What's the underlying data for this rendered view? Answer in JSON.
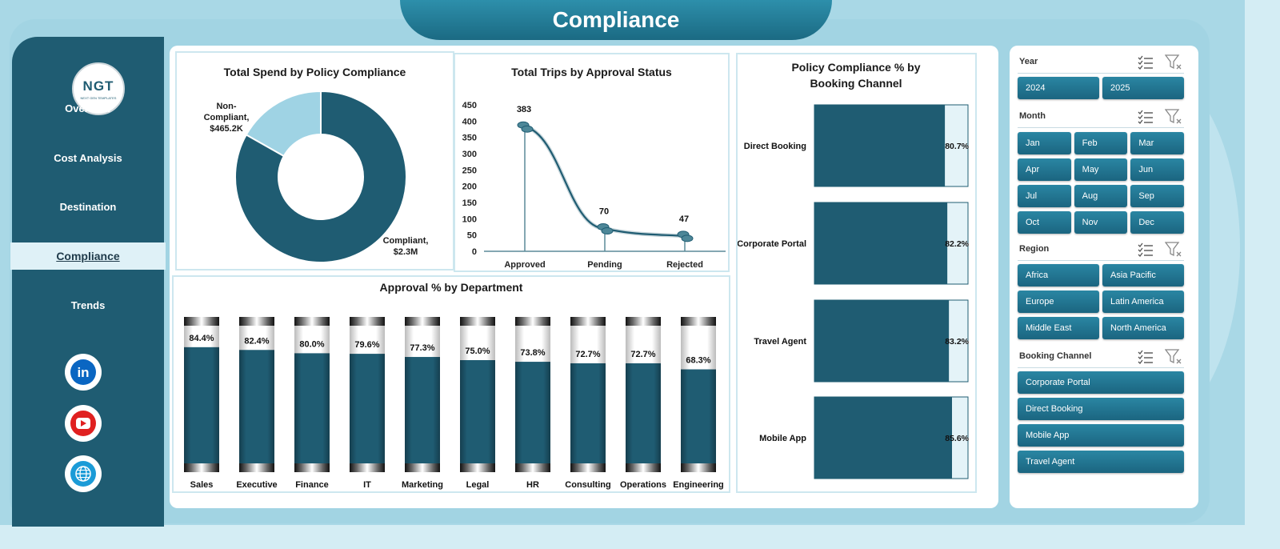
{
  "header": {
    "title": "Compliance"
  },
  "logo": {
    "mark": "NGT",
    "tagline": "NEXT GEN TEMPLATES"
  },
  "sidebar": {
    "items": [
      {
        "label": "Overview"
      },
      {
        "label": "Cost Analysis"
      },
      {
        "label": "Destination"
      },
      {
        "label": "Compliance",
        "active": true
      },
      {
        "label": "Trends"
      }
    ],
    "social": [
      {
        "icon": "linkedin-icon",
        "label": "in"
      },
      {
        "icon": "youtube-icon",
        "label": "▶"
      },
      {
        "icon": "globe-icon",
        "label": "🌐"
      }
    ]
  },
  "colors": {
    "primary": "#1f5c72",
    "light": "#a9d8e6",
    "donut_light": "#9fd3e4",
    "bar_bg": "#e4f3f8"
  },
  "chart_data": [
    {
      "type": "pie",
      "title": "Total Spend by Policy Compliance",
      "slices": [
        {
          "label": "Compliant",
          "display": "$2.3M",
          "value": 2300
        },
        {
          "label": "Non-Compliant",
          "display": "$465.2K",
          "value": 465.2
        }
      ]
    },
    {
      "type": "line",
      "title": "Total Trips by Approval Status",
      "categories": [
        "Approved",
        "Pending",
        "Rejected"
      ],
      "values": [
        383,
        70,
        47
      ],
      "ylim": [
        0,
        450
      ],
      "yticks": [
        0,
        50,
        100,
        150,
        200,
        250,
        300,
        350,
        400,
        450
      ]
    },
    {
      "type": "bar",
      "title": "Policy Compliance % by Booking Channel",
      "categories": [
        "Direct Booking",
        "Corporate Portal",
        "Travel Agent",
        "Mobile App"
      ],
      "values": [
        80.7,
        82.2,
        83.2,
        85.6
      ],
      "labels": [
        "80.7%",
        "82.2%",
        "83.2%",
        "85.6%"
      ],
      "xlim": [
        0,
        100
      ]
    },
    {
      "type": "bar",
      "title": "Approval % by Department",
      "categories": [
        "Sales",
        "Executive",
        "Finance",
        "IT",
        "Marketing",
        "Legal",
        "HR",
        "Consulting",
        "Operations",
        "Engineering"
      ],
      "values": [
        84.4,
        82.4,
        80.0,
        79.6,
        77.3,
        75.0,
        73.8,
        72.7,
        72.7,
        68.3
      ],
      "labels": [
        "84.4%",
        "82.4%",
        "80.0%",
        "79.6%",
        "77.3%",
        "75.0%",
        "73.8%",
        "72.7%",
        "72.7%",
        "68.3%"
      ],
      "ylim": [
        0,
        100
      ]
    }
  ],
  "filters": [
    {
      "title": "Year",
      "options": [
        "2024",
        "2025"
      ]
    },
    {
      "title": "Month",
      "options": [
        "Jan",
        "Feb",
        "Mar",
        "Apr",
        "May",
        "Jun",
        "Jul",
        "Aug",
        "Sep",
        "Oct",
        "Nov",
        "Dec"
      ]
    },
    {
      "title": "Region",
      "options": [
        "Africa",
        "Asia Pacific",
        "Europe",
        "Latin America",
        "Middle East",
        "North America"
      ]
    },
    {
      "title": "Booking Channel",
      "options": [
        "Corporate Portal",
        "Direct Booking",
        "Mobile App",
        "Travel Agent"
      ]
    }
  ]
}
